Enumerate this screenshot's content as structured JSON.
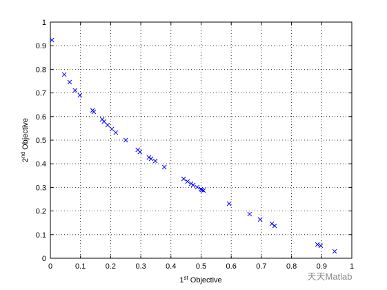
{
  "chart_data": {
    "type": "scatter",
    "xlabel": {
      "base": "1",
      "sup": "st",
      "rest": " Objective"
    },
    "ylabel": {
      "base": "2",
      "sup": "nd",
      "rest": " Objective"
    },
    "watermark": "天天Matlab",
    "x": [
      0.005,
      0.046,
      0.064,
      0.082,
      0.098,
      0.14,
      0.144,
      0.172,
      0.178,
      0.19,
      0.204,
      0.217,
      0.25,
      0.29,
      0.297,
      0.327,
      0.334,
      0.348,
      0.378,
      0.442,
      0.455,
      0.467,
      0.474,
      0.487,
      0.499,
      0.503,
      0.508,
      0.593,
      0.661,
      0.696,
      0.735,
      0.744,
      0.886,
      0.897,
      0.943
    ],
    "values": [
      0.924,
      0.778,
      0.746,
      0.711,
      0.69,
      0.626,
      0.62,
      0.588,
      0.579,
      0.564,
      0.547,
      0.532,
      0.5,
      0.459,
      0.45,
      0.427,
      0.421,
      0.412,
      0.386,
      0.336,
      0.325,
      0.316,
      0.31,
      0.301,
      0.292,
      0.289,
      0.287,
      0.231,
      0.187,
      0.164,
      0.146,
      0.137,
      0.058,
      0.053,
      0.029
    ],
    "color": "#0000ff",
    "marker": "x",
    "xlim": [
      0,
      1
    ],
    "ylim": [
      0,
      1
    ],
    "xticks": [
      0,
      0.1,
      0.2,
      0.3,
      0.4,
      0.5,
      0.6,
      0.7,
      0.8,
      0.9,
      1
    ],
    "yticks": [
      0,
      0.1,
      0.2,
      0.3,
      0.4,
      0.5,
      0.6,
      0.7,
      0.8,
      0.9,
      1
    ],
    "grid": true
  }
}
